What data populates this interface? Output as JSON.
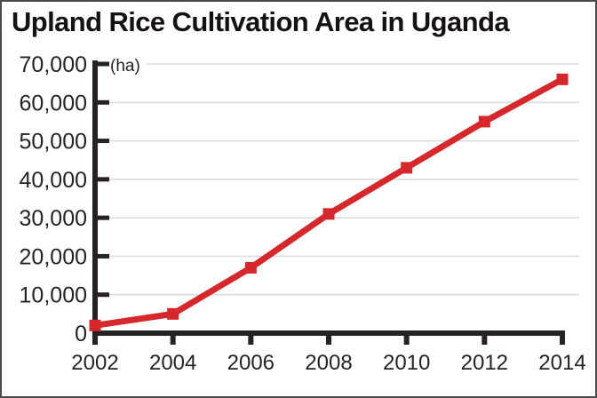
{
  "title": "Upland Rice Cultivation Area in Uganda",
  "chart_data": {
    "type": "line",
    "title": "Upland Rice Cultivation Area in Uganda",
    "ylabel": "(ha)",
    "xlabel": "",
    "x": [
      2002,
      2004,
      2006,
      2008,
      2010,
      2012,
      2014
    ],
    "values": [
      2000,
      5000,
      17000,
      31000,
      43000,
      55000,
      66000
    ],
    "xtick_labels": [
      "2002",
      "2004",
      "2006",
      "2008",
      "2010",
      "2012",
      "2014"
    ],
    "ytick_labels": [
      "0",
      "10,000",
      "20,000",
      "30,000",
      "40,000",
      "50,000",
      "60,000",
      "70,000"
    ],
    "ytick_step": 10000,
    "ylim": [
      0,
      70000
    ],
    "grid": "horizontal",
    "legend": "none",
    "marker": "square",
    "line_color": "#d5282c",
    "axis_color": "#272224",
    "grid_color": "#dcdcdd",
    "text_color": "#272224",
    "background_color": "#ffffff"
  }
}
